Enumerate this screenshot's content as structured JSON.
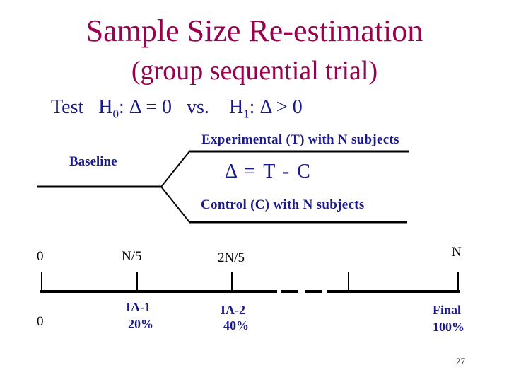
{
  "title": {
    "line1": "Sample Size Re-estimation",
    "line2": "(group sequential trial)"
  },
  "hypothesis": {
    "prefix": "Test",
    "h0_symbol": "H",
    "h0_sub": "0",
    "h0_rest": ":  Δ = 0",
    "vs": "vs.",
    "h1_symbol": "H",
    "h1_sub": "1",
    "h1_rest": ":  Δ > 0"
  },
  "diagram": {
    "experimental_label": "Experimental (T)  with  N  subjects",
    "baseline_label": "Baseline",
    "delta_label": "Δ = T - C",
    "control_label": "Control (C) with  N  subjects"
  },
  "timeline": {
    "top_labels": [
      "0",
      "N/5",
      "2N/5",
      "N"
    ],
    "bottom_zero": "0",
    "ia1_name": "IA-1",
    "ia1_pct": "20%",
    "ia2_name": "IA-2",
    "ia2_pct": "40%",
    "final_name": "Final",
    "final_pct": "100%"
  },
  "slide_number": "27",
  "colors": {
    "title": "#99004d",
    "text": "#1a1a8c",
    "lines": "#000000"
  }
}
